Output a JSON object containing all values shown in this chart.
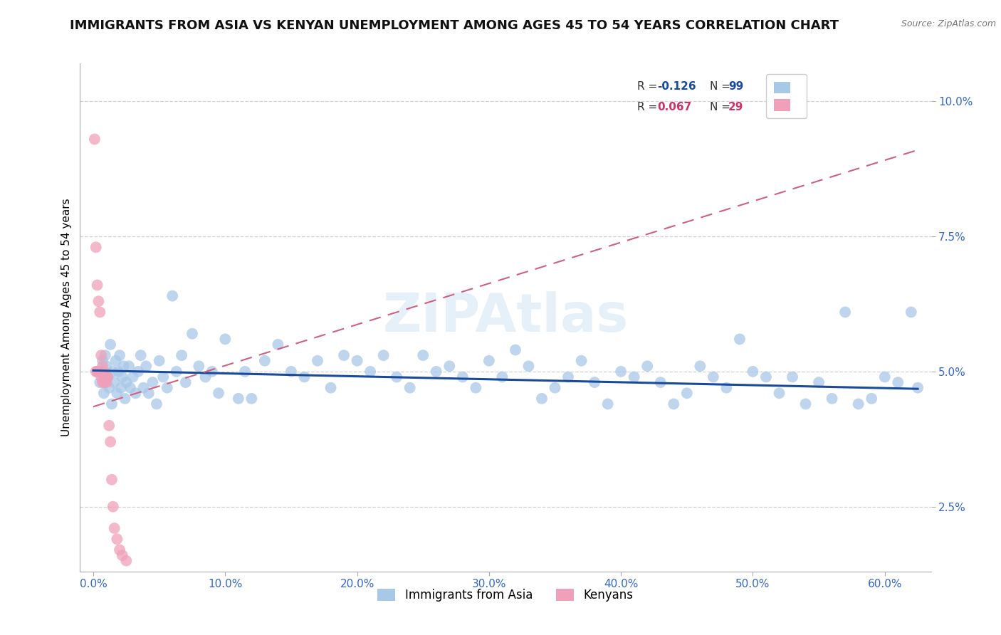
{
  "title": "IMMIGRANTS FROM ASIA VS KENYAN UNEMPLOYMENT AMONG AGES 45 TO 54 YEARS CORRELATION CHART",
  "source": "Source: ZipAtlas.com",
  "ylabel": "Unemployment Among Ages 45 to 54 years",
  "legend_blue_r": "R = -0.126",
  "legend_blue_n": "N = 99",
  "legend_pink_r": "R =  0.067",
  "legend_pink_n": "N = 29",
  "legend_bottom_blue": "Immigrants from Asia",
  "legend_bottom_pink": "Kenyans",
  "blue_color": "#a8c8e8",
  "blue_line_color": "#1a4a9a",
  "pink_color": "#f0a0b8",
  "pink_line_color": "#d06080",
  "watermark": "ZIPAtlas",
  "blue_scatter_x": [
    0.003,
    0.005,
    0.007,
    0.008,
    0.009,
    0.01,
    0.011,
    0.012,
    0.013,
    0.014,
    0.015,
    0.016,
    0.017,
    0.018,
    0.019,
    0.02,
    0.021,
    0.022,
    0.023,
    0.024,
    0.025,
    0.027,
    0.028,
    0.03,
    0.032,
    0.034,
    0.036,
    0.038,
    0.04,
    0.042,
    0.045,
    0.048,
    0.05,
    0.053,
    0.056,
    0.06,
    0.063,
    0.067,
    0.07,
    0.075,
    0.08,
    0.085,
    0.09,
    0.095,
    0.1,
    0.11,
    0.115,
    0.12,
    0.13,
    0.14,
    0.15,
    0.16,
    0.17,
    0.18,
    0.19,
    0.2,
    0.21,
    0.22,
    0.23,
    0.24,
    0.25,
    0.26,
    0.27,
    0.28,
    0.29,
    0.3,
    0.31,
    0.32,
    0.33,
    0.34,
    0.35,
    0.36,
    0.37,
    0.38,
    0.39,
    0.4,
    0.41,
    0.42,
    0.43,
    0.44,
    0.45,
    0.46,
    0.47,
    0.48,
    0.49,
    0.5,
    0.51,
    0.52,
    0.53,
    0.54,
    0.55,
    0.56,
    0.57,
    0.58,
    0.59,
    0.6,
    0.61,
    0.62,
    0.625
  ],
  "blue_scatter_y": [
    0.05,
    0.048,
    0.052,
    0.046,
    0.053,
    0.051,
    0.049,
    0.047,
    0.055,
    0.044,
    0.05,
    0.048,
    0.052,
    0.046,
    0.05,
    0.053,
    0.047,
    0.049,
    0.051,
    0.045,
    0.048,
    0.051,
    0.047,
    0.049,
    0.046,
    0.05,
    0.053,
    0.047,
    0.051,
    0.046,
    0.048,
    0.044,
    0.052,
    0.049,
    0.047,
    0.064,
    0.05,
    0.053,
    0.048,
    0.057,
    0.051,
    0.049,
    0.05,
    0.046,
    0.056,
    0.045,
    0.05,
    0.045,
    0.052,
    0.055,
    0.05,
    0.049,
    0.052,
    0.047,
    0.053,
    0.052,
    0.05,
    0.053,
    0.049,
    0.047,
    0.053,
    0.05,
    0.051,
    0.049,
    0.047,
    0.052,
    0.049,
    0.054,
    0.051,
    0.045,
    0.047,
    0.049,
    0.052,
    0.048,
    0.044,
    0.05,
    0.049,
    0.051,
    0.048,
    0.044,
    0.046,
    0.051,
    0.049,
    0.047,
    0.056,
    0.05,
    0.049,
    0.046,
    0.049,
    0.044,
    0.048,
    0.045,
    0.061,
    0.044,
    0.045,
    0.049,
    0.048,
    0.061,
    0.047
  ],
  "pink_scatter_x": [
    0.001,
    0.002,
    0.002,
    0.003,
    0.003,
    0.004,
    0.004,
    0.005,
    0.005,
    0.006,
    0.006,
    0.007,
    0.007,
    0.008,
    0.008,
    0.009,
    0.009,
    0.01,
    0.01,
    0.011,
    0.012,
    0.013,
    0.014,
    0.015,
    0.016,
    0.018,
    0.02,
    0.022,
    0.025
  ],
  "pink_scatter_y": [
    0.093,
    0.05,
    0.073,
    0.066,
    0.05,
    0.063,
    0.05,
    0.061,
    0.05,
    0.053,
    0.049,
    0.051,
    0.048,
    0.05,
    0.048,
    0.049,
    0.048,
    0.049,
    0.048,
    0.049,
    0.04,
    0.037,
    0.03,
    0.025,
    0.021,
    0.019,
    0.017,
    0.016,
    0.015
  ],
  "blue_line_x": [
    0.0,
    0.625
  ],
  "blue_line_y": [
    0.0502,
    0.0468
  ],
  "pink_line_x": [
    0.0,
    0.625
  ],
  "pink_line_y": [
    0.0435,
    0.091
  ],
  "grid_color": "#cccccc",
  "background_color": "#ffffff",
  "title_fontsize": 13,
  "axis_label_fontsize": 11,
  "tick_fontsize": 11,
  "tick_color": "#3366cc",
  "xlim": [
    -0.01,
    0.635
  ],
  "ylim": [
    0.013,
    0.107
  ],
  "xticks": [
    0.0,
    0.1,
    0.2,
    0.3,
    0.4,
    0.5,
    0.6
  ],
  "xtick_labels": [
    "0.0%",
    "10.0%",
    "20.0%",
    "30.0%",
    "40.0%",
    "50.0%",
    "60.0%"
  ],
  "yticks": [
    0.025,
    0.05,
    0.075,
    0.1
  ],
  "ytick_labels": [
    "2.5%",
    "5.0%",
    "7.5%",
    "10.0%"
  ]
}
